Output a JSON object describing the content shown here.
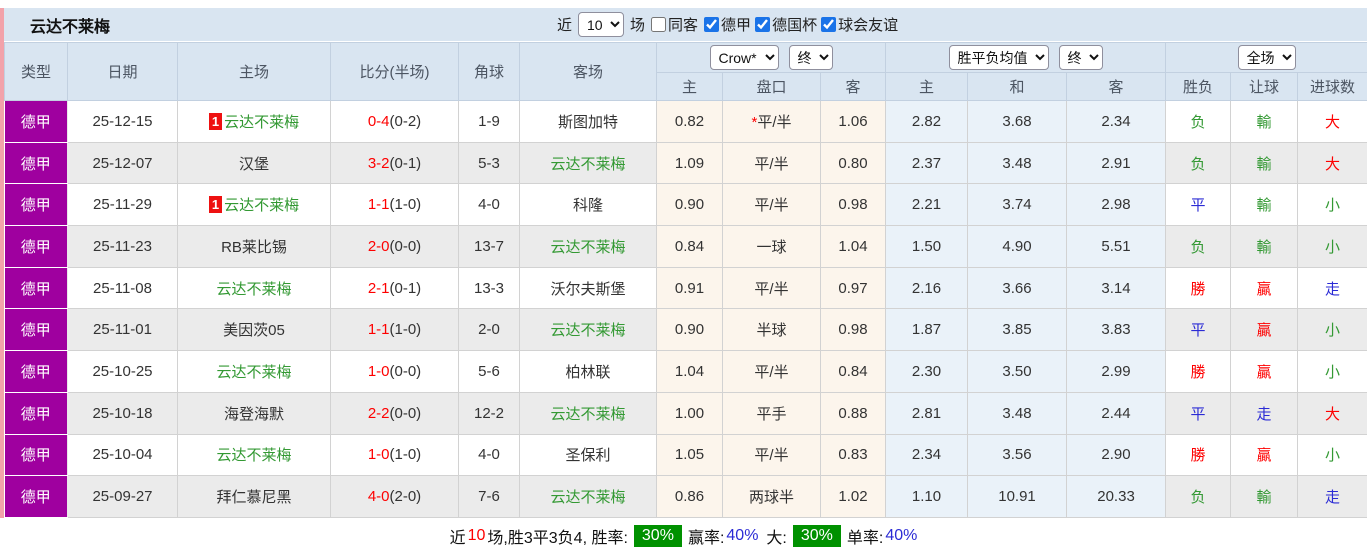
{
  "page": {
    "title": "云达不莱梅",
    "filter": {
      "recent_label": "近",
      "recent_value": "10",
      "games_label": "场",
      "same_venue": {
        "label": "同客",
        "checked": false
      },
      "leagues": [
        {
          "label": "德甲",
          "checked": true
        },
        {
          "label": "德国杯",
          "checked": true
        },
        {
          "label": "球会友谊",
          "checked": true
        }
      ]
    }
  },
  "table": {
    "left_headers": {
      "type": "类型",
      "date": "日期",
      "home": "主场",
      "score": "比分(半场)",
      "corner": "角球",
      "away": "客场"
    },
    "odds_groups": {
      "handicap": {
        "company_select": "Crow*",
        "time_select": "终",
        "sub_home": "主",
        "sub_line": "盘口",
        "sub_away": "客"
      },
      "europe": {
        "company_select": "胜平负均值",
        "time_select": "终",
        "sub_home": "主",
        "sub_draw": "和",
        "sub_away": "客"
      },
      "result": {
        "scope_select": "全场",
        "sub_result": "胜负",
        "sub_handicap": "让球",
        "sub_goals": "进球数"
      }
    },
    "rows": [
      {
        "league": "德甲",
        "date": "25-12-15",
        "home": "云达不莱梅",
        "home_self": true,
        "home_badge": "1",
        "score": "0-4",
        "half": "(0-2)",
        "corner": "1-9",
        "away": "斯图加特",
        "away_self": false,
        "ah_home": "0.82",
        "ah_star": "*",
        "ah_line": "平/半",
        "ah_away": "1.06",
        "eu_home": "2.82",
        "eu_draw": "3.68",
        "eu_away": "2.34",
        "res": "负",
        "res_c": "green",
        "ah_res": "輸",
        "ah_res_c": "green",
        "goal_res": "大",
        "goal_res_c": "red"
      },
      {
        "league": "德甲",
        "date": "25-12-07",
        "home": "汉堡",
        "home_self": false,
        "home_badge": "",
        "score": "3-2",
        "half": "(0-1)",
        "corner": "5-3",
        "away": "云达不莱梅",
        "away_self": true,
        "ah_home": "1.09",
        "ah_star": "",
        "ah_line": "平/半",
        "ah_away": "0.80",
        "eu_home": "2.37",
        "eu_draw": "3.48",
        "eu_away": "2.91",
        "res": "负",
        "res_c": "green",
        "ah_res": "輸",
        "ah_res_c": "green",
        "goal_res": "大",
        "goal_res_c": "red"
      },
      {
        "league": "德甲",
        "date": "25-11-29",
        "home": "云达不莱梅",
        "home_self": true,
        "home_badge": "1",
        "score": "1-1",
        "half": "(1-0)",
        "corner": "4-0",
        "away": "科隆",
        "away_self": false,
        "ah_home": "0.90",
        "ah_star": "",
        "ah_line": "平/半",
        "ah_away": "0.98",
        "eu_home": "2.21",
        "eu_draw": "3.74",
        "eu_away": "2.98",
        "res": "平",
        "res_c": "blue",
        "ah_res": "輸",
        "ah_res_c": "green",
        "goal_res": "小",
        "goal_res_c": "green"
      },
      {
        "league": "德甲",
        "date": "25-11-23",
        "home": "RB莱比锡",
        "home_self": false,
        "home_badge": "",
        "score": "2-0",
        "half": "(0-0)",
        "corner": "13-7",
        "away": "云达不莱梅",
        "away_self": true,
        "ah_home": "0.84",
        "ah_star": "",
        "ah_line": "一球",
        "ah_away": "1.04",
        "eu_home": "1.50",
        "eu_draw": "4.90",
        "eu_away": "5.51",
        "res": "负",
        "res_c": "green",
        "ah_res": "輸",
        "ah_res_c": "green",
        "goal_res": "小",
        "goal_res_c": "green"
      },
      {
        "league": "德甲",
        "date": "25-11-08",
        "home": "云达不莱梅",
        "home_self": true,
        "home_badge": "",
        "score": "2-1",
        "half": "(0-1)",
        "corner": "13-3",
        "away": "沃尔夫斯堡",
        "away_self": false,
        "ah_home": "0.91",
        "ah_star": "",
        "ah_line": "平/半",
        "ah_away": "0.97",
        "eu_home": "2.16",
        "eu_draw": "3.66",
        "eu_away": "3.14",
        "res": "勝",
        "res_c": "red",
        "ah_res": "贏",
        "ah_res_c": "red",
        "goal_res": "走",
        "goal_res_c": "blue"
      },
      {
        "league": "德甲",
        "date": "25-11-01",
        "home": "美因茨05",
        "home_self": false,
        "home_badge": "",
        "score": "1-1",
        "half": "(1-0)",
        "corner": "2-0",
        "away": "云达不莱梅",
        "away_self": true,
        "ah_home": "0.90",
        "ah_star": "",
        "ah_line": "半球",
        "ah_away": "0.98",
        "eu_home": "1.87",
        "eu_draw": "3.85",
        "eu_away": "3.83",
        "res": "平",
        "res_c": "blue",
        "ah_res": "贏",
        "ah_res_c": "red",
        "goal_res": "小",
        "goal_res_c": "green"
      },
      {
        "league": "德甲",
        "date": "25-10-25",
        "home": "云达不莱梅",
        "home_self": true,
        "home_badge": "",
        "score": "1-0",
        "half": "(0-0)",
        "corner": "5-6",
        "away": "柏林联",
        "away_self": false,
        "ah_home": "1.04",
        "ah_star": "",
        "ah_line": "平/半",
        "ah_away": "0.84",
        "eu_home": "2.30",
        "eu_draw": "3.50",
        "eu_away": "2.99",
        "res": "勝",
        "res_c": "red",
        "ah_res": "贏",
        "ah_res_c": "red",
        "goal_res": "小",
        "goal_res_c": "green"
      },
      {
        "league": "德甲",
        "date": "25-10-18",
        "home": "海登海默",
        "home_self": false,
        "home_badge": "",
        "score": "2-2",
        "half": "(0-0)",
        "corner": "12-2",
        "away": "云达不莱梅",
        "away_self": true,
        "ah_home": "1.00",
        "ah_star": "",
        "ah_line": "平手",
        "ah_away": "0.88",
        "eu_home": "2.81",
        "eu_draw": "3.48",
        "eu_away": "2.44",
        "res": "平",
        "res_c": "blue",
        "ah_res": "走",
        "ah_res_c": "blue",
        "goal_res": "大",
        "goal_res_c": "red"
      },
      {
        "league": "德甲",
        "date": "25-10-04",
        "home": "云达不莱梅",
        "home_self": true,
        "home_badge": "",
        "score": "1-0",
        "half": "(1-0)",
        "corner": "4-0",
        "away": "圣保利",
        "away_self": false,
        "ah_home": "1.05",
        "ah_star": "",
        "ah_line": "平/半",
        "ah_away": "0.83",
        "eu_home": "2.34",
        "eu_draw": "3.56",
        "eu_away": "2.90",
        "res": "勝",
        "res_c": "red",
        "ah_res": "贏",
        "ah_res_c": "red",
        "goal_res": "小",
        "goal_res_c": "green"
      },
      {
        "league": "德甲",
        "date": "25-09-27",
        "home": "拜仁慕尼黑",
        "home_self": false,
        "home_badge": "",
        "score": "4-0",
        "half": "(2-0)",
        "corner": "7-6",
        "away": "云达不莱梅",
        "away_self": true,
        "ah_home": "0.86",
        "ah_star": "",
        "ah_line": "两球半",
        "ah_away": "1.02",
        "eu_home": "1.10",
        "eu_draw": "10.91",
        "eu_away": "20.33",
        "res": "负",
        "res_c": "green",
        "ah_res": "輸",
        "ah_res_c": "green",
        "goal_res": "走",
        "goal_res_c": "blue"
      }
    ]
  },
  "footer": {
    "prefix": "近",
    "count": "10",
    "segment1": "场,胜3平3负4, 胜率:",
    "win_rate": "30%",
    "segment2": "赢率:",
    "win_odds_rate": "40%",
    "segment3": "大:",
    "big_rate": "30%",
    "segment4": "单率:",
    "single_rate": "40%"
  },
  "colors": {
    "accent_purple": "#9f009f",
    "header_blue": "#d9e5f1",
    "self_team_green": "#339933",
    "score_red": "#fe0000",
    "draw_blue": "#2b2bd5",
    "badge_green": "#009100"
  }
}
